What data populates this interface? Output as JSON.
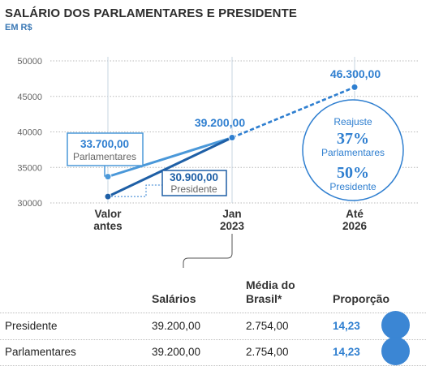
{
  "header": {
    "title": "SALÁRIO DOS PARLAMENTARES E PRESIDENTE",
    "subtitle": "EM R$"
  },
  "colors": {
    "parlamentares": "#4a98d9",
    "presidente": "#1e5fa6",
    "accent": "#2f7fd0",
    "bubble": "#3b86d4"
  },
  "chart_data": {
    "type": "line",
    "ylim": [
      30000,
      50000
    ],
    "yticks": [
      "50000",
      "45000",
      "40000",
      "35000",
      "30000"
    ],
    "ytick_values": [
      50000,
      45000,
      40000,
      35000,
      30000
    ],
    "categories": [
      "Valor antes",
      "Jan 2023",
      "Até 2026"
    ],
    "category_lines": [
      [
        "Valor",
        "antes"
      ],
      [
        "Jan",
        "2023"
      ],
      [
        "Até",
        "2026"
      ]
    ],
    "series": [
      {
        "name": "Parlamentares",
        "values": [
          33700,
          39200,
          46300
        ]
      },
      {
        "name": "Presidente",
        "values": [
          30900,
          39200,
          46300
        ]
      }
    ],
    "projection_from_index": 1,
    "labels": {
      "parl_start_value": "33.700,00",
      "parl_start_name": "Parlamentares",
      "pres_start_value": "30.900,00",
      "pres_start_name": "Presidente",
      "jan_value": "39.200,00",
      "end_value": "46.300,00"
    },
    "reajuste": {
      "title": "Reajuste",
      "parl_pct": "37%",
      "parl_label": "Parlamentares",
      "pres_pct": "50%",
      "pres_label": "Presidente"
    }
  },
  "table": {
    "headers": {
      "salarios": "Salários",
      "media": [
        "Média do",
        "Brasil*"
      ],
      "proporcao": "Proporção"
    },
    "rows": [
      {
        "label": "Presidente",
        "salario": "39.200,00",
        "media": "2.754,00",
        "proporcao": "14,23",
        "ratio": 14.23
      },
      {
        "label": "Parlamentares",
        "salario": "39.200,00",
        "media": "2.754,00",
        "proporcao": "14,23",
        "ratio": 14.23
      }
    ]
  }
}
